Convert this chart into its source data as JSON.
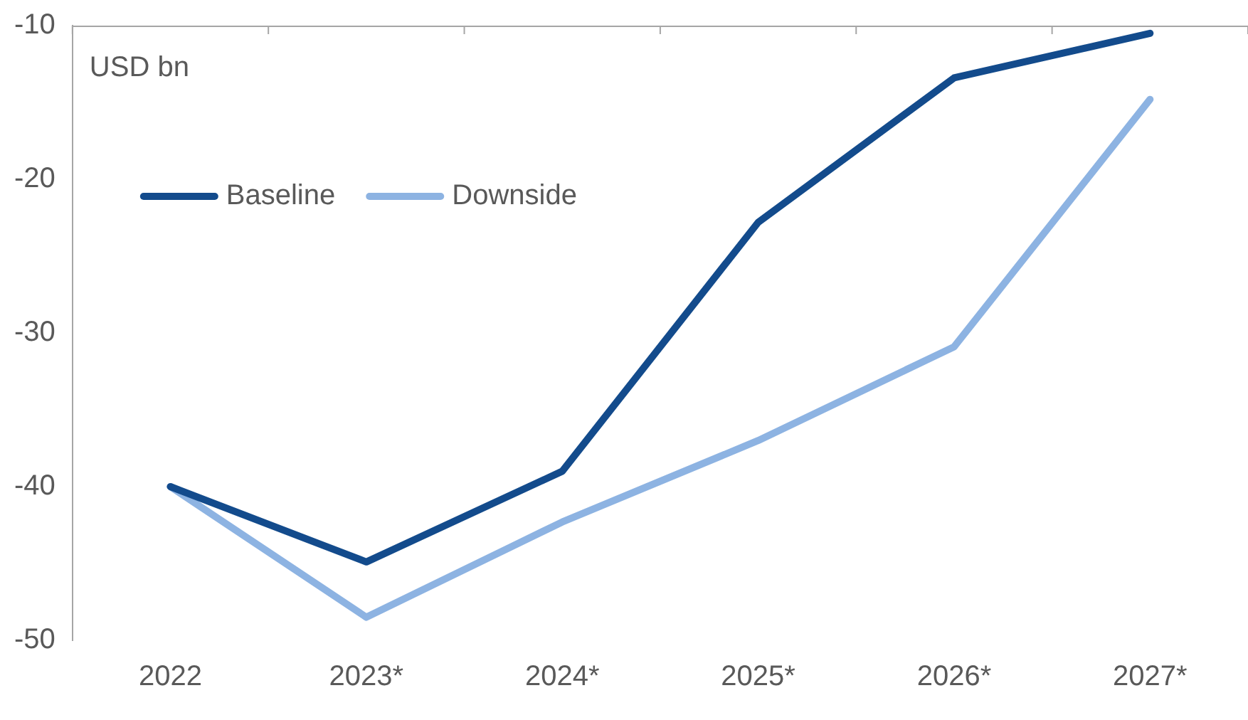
{
  "chart_data": {
    "type": "line",
    "ylabel": "USD bn",
    "categories": [
      "2022",
      "2023*",
      "2024*",
      "2025*",
      "2026*",
      "2027*"
    ],
    "series": [
      {
        "name": "Baseline",
        "color": "#134b8c",
        "values": [
          -40,
          -44.9,
          -39,
          -22.8,
          -13.4,
          -10.5
        ]
      },
      {
        "name": "Downside",
        "color": "#8db3e2",
        "values": [
          -40,
          -48.5,
          -42.3,
          -37,
          -30.9,
          -14.8
        ]
      }
    ],
    "ylim": [
      -50,
      -10
    ],
    "yticks": [
      -50,
      -40,
      -30,
      -20,
      -10
    ],
    "grid": false,
    "legend": "top left",
    "marker": "none",
    "line_style": "solid"
  }
}
